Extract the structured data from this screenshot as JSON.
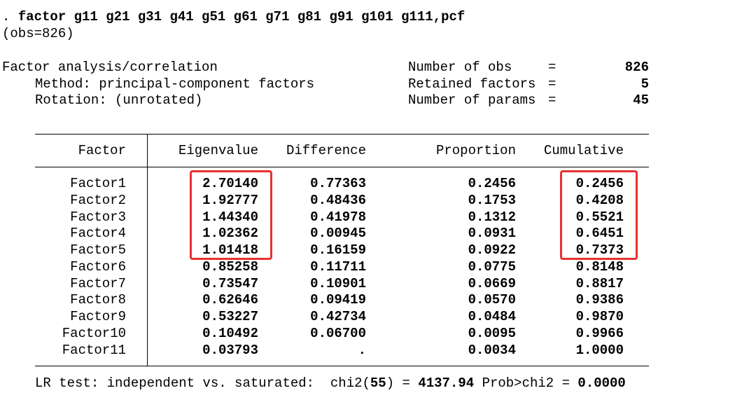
{
  "command": {
    "prompt": ".",
    "text": "factor g11 g21 g31 g41 g51 g61 g71 g81 g91 g101 g111,pcf"
  },
  "obs": "(obs=826)",
  "header": {
    "title": "Factor analysis/correlation",
    "method": "Method: principal-component factors",
    "rotation": "Rotation: (unrotated)",
    "equals": "=",
    "stats": [
      {
        "label": "Number of obs",
        "value": "826"
      },
      {
        "label": "Retained factors",
        "value": "5"
      },
      {
        "label": "Number of params",
        "value": "45"
      }
    ]
  },
  "table": {
    "columns": [
      "Factor",
      "Eigenvalue",
      "Difference",
      "Proportion",
      "Cumulative"
    ],
    "rows": [
      [
        "Factor1",
        "2.70140",
        "0.77363",
        "0.2456",
        "0.2456"
      ],
      [
        "Factor2",
        "1.92777",
        "0.48436",
        "0.1753",
        "0.4208"
      ],
      [
        "Factor3",
        "1.44340",
        "0.41978",
        "0.1312",
        "0.5521"
      ],
      [
        "Factor4",
        "1.02362",
        "0.00945",
        "0.0931",
        "0.6451"
      ],
      [
        "Factor5",
        "1.01418",
        "0.16159",
        "0.0922",
        "0.7373"
      ],
      [
        "Factor6",
        "0.85258",
        "0.11711",
        "0.0775",
        "0.8148"
      ],
      [
        "Factor7",
        "0.73547",
        "0.10901",
        "0.0669",
        "0.8817"
      ],
      [
        "Factor8",
        "0.62646",
        "0.09419",
        "0.0570",
        "0.9386"
      ],
      [
        "Factor9",
        "0.53227",
        "0.42734",
        "0.0484",
        "0.9870"
      ],
      [
        "Factor10",
        "0.10492",
        "0.06700",
        "0.0095",
        "0.9966"
      ],
      [
        "Factor11",
        "0.03793",
        ".",
        "0.0034",
        "1.0000"
      ]
    ]
  },
  "footer": {
    "label": "LR test: independent vs. saturated:",
    "chi2_open": "chi2(",
    "df": "55",
    "chi2_close": ")",
    "equals": "=",
    "chi2": "4137.94",
    "prob_label": "Prob>chi2",
    "prob": "0.0000"
  }
}
